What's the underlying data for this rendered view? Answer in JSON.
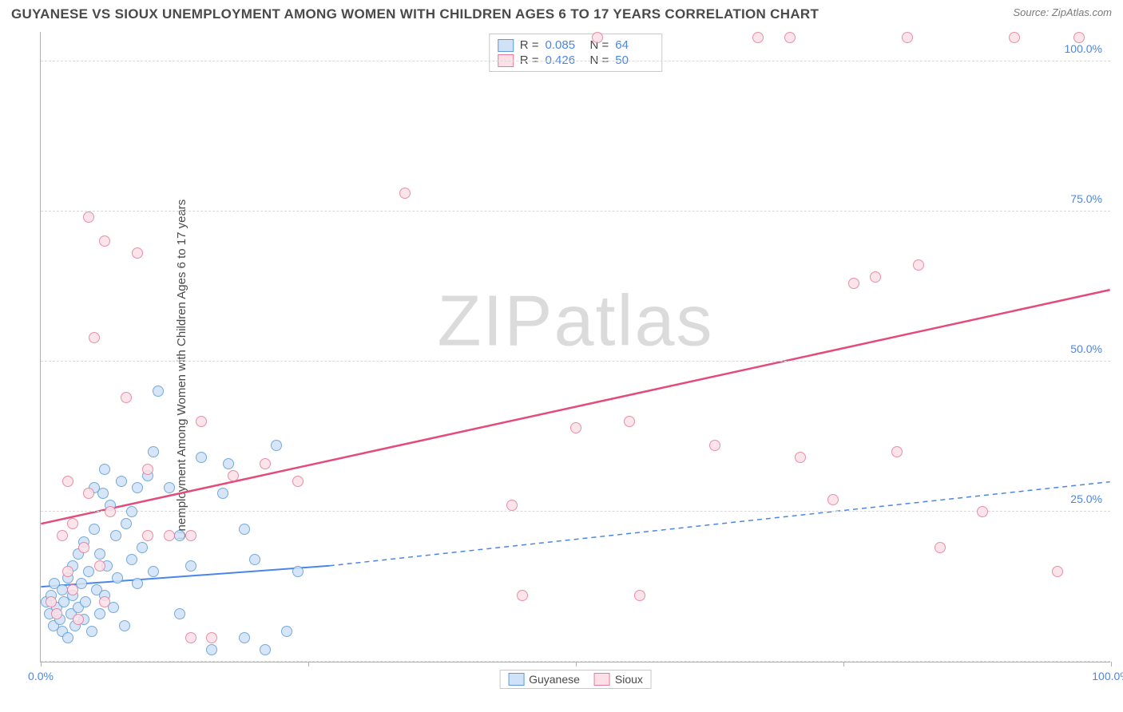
{
  "title": "GUYANESE VS SIOUX UNEMPLOYMENT AMONG WOMEN WITH CHILDREN AGES 6 TO 17 YEARS CORRELATION CHART",
  "source": "Source: ZipAtlas.com",
  "watermark": "ZIPatlas",
  "ylabel": "Unemployment Among Women with Children Ages 6 to 17 years",
  "chart": {
    "type": "scatter",
    "xlim": [
      0,
      100
    ],
    "ylim": [
      0,
      105
    ],
    "xticks": [
      0,
      25,
      50,
      75,
      100
    ],
    "xtick_labels": [
      "0.0%",
      "",
      "",
      "",
      "100.0%"
    ],
    "yticks": [
      0,
      25,
      50,
      75,
      100
    ],
    "ytick_labels": [
      "",
      "25.0%",
      "50.0%",
      "75.0%",
      "100.0%"
    ],
    "grid_color": "#d8d8d8",
    "background_color": "#ffffff",
    "marker_radius": 7,
    "marker_stroke_width": 1.2,
    "series": [
      {
        "name": "Guyanese",
        "fill": "#cfe2f7",
        "stroke": "#5e9cd3",
        "r_value": "0.085",
        "n_value": "64",
        "trend": {
          "x1": 0,
          "y1": 12.5,
          "x2": 27,
          "y2": 16,
          "solid": true,
          "dash_x2": 100,
          "dash_y2": 30,
          "color": "#4a86e8",
          "width": 2
        },
        "points": [
          [
            0.5,
            10
          ],
          [
            0.8,
            8
          ],
          [
            1,
            11
          ],
          [
            1.2,
            6
          ],
          [
            1.3,
            13
          ],
          [
            1.5,
            9
          ],
          [
            1.8,
            7
          ],
          [
            2,
            12
          ],
          [
            2,
            5
          ],
          [
            2.2,
            10
          ],
          [
            2.5,
            14
          ],
          [
            2.5,
            4
          ],
          [
            2.8,
            8
          ],
          [
            3,
            16
          ],
          [
            3,
            11
          ],
          [
            3.2,
            6
          ],
          [
            3.5,
            18
          ],
          [
            3.5,
            9
          ],
          [
            3.8,
            13
          ],
          [
            4,
            7
          ],
          [
            4,
            20
          ],
          [
            4.2,
            10
          ],
          [
            4.5,
            15
          ],
          [
            4.8,
            5
          ],
          [
            5,
            29
          ],
          [
            5,
            22
          ],
          [
            5.2,
            12
          ],
          [
            5.5,
            8
          ],
          [
            5.5,
            18
          ],
          [
            5.8,
            28
          ],
          [
            6,
            11
          ],
          [
            6,
            32
          ],
          [
            6.2,
            16
          ],
          [
            6.5,
            26
          ],
          [
            6.8,
            9
          ],
          [
            7,
            21
          ],
          [
            7.2,
            14
          ],
          [
            7.5,
            30
          ],
          [
            7.8,
            6
          ],
          [
            8,
            23
          ],
          [
            8.5,
            17
          ],
          [
            8.5,
            25
          ],
          [
            9,
            29
          ],
          [
            9,
            13
          ],
          [
            9.5,
            19
          ],
          [
            10,
            31
          ],
          [
            10.5,
            15
          ],
          [
            10.5,
            35
          ],
          [
            11,
            45
          ],
          [
            12,
            29
          ],
          [
            13,
            8
          ],
          [
            13,
            21
          ],
          [
            14,
            16
          ],
          [
            15,
            34
          ],
          [
            16,
            2
          ],
          [
            17,
            28
          ],
          [
            17.5,
            33
          ],
          [
            19,
            4
          ],
          [
            19,
            22
          ],
          [
            20,
            17
          ],
          [
            21,
            2
          ],
          [
            22,
            36
          ],
          [
            23,
            5
          ],
          [
            24,
            15
          ]
        ]
      },
      {
        "name": "Sioux",
        "fill": "#fbe0e7",
        "stroke": "#e77a9a",
        "r_value": "0.426",
        "n_value": "50",
        "trend": {
          "x1": 0,
          "y1": 23,
          "x2": 100,
          "y2": 62,
          "solid": true,
          "color": "#e24b7a",
          "width": 2.5
        },
        "points": [
          [
            1,
            10
          ],
          [
            1.5,
            8
          ],
          [
            2,
            21
          ],
          [
            2.5,
            15
          ],
          [
            2.5,
            30
          ],
          [
            3,
            12
          ],
          [
            3,
            23
          ],
          [
            3.5,
            7
          ],
          [
            4,
            19
          ],
          [
            4.5,
            28
          ],
          [
            4.5,
            74
          ],
          [
            5,
            54
          ],
          [
            5.5,
            16
          ],
          [
            6,
            70
          ],
          [
            6,
            10
          ],
          [
            6.5,
            25
          ],
          [
            8,
            44
          ],
          [
            9,
            68
          ],
          [
            10,
            21
          ],
          [
            10,
            32
          ],
          [
            12,
            21
          ],
          [
            14,
            21
          ],
          [
            14,
            4
          ],
          [
            15,
            40
          ],
          [
            16,
            4
          ],
          [
            18,
            31
          ],
          [
            21,
            33
          ],
          [
            24,
            30
          ],
          [
            34,
            78
          ],
          [
            44,
            26
          ],
          [
            45,
            11
          ],
          [
            50,
            39
          ],
          [
            52,
            104
          ],
          [
            55,
            40
          ],
          [
            56,
            11
          ],
          [
            63,
            36
          ],
          [
            67,
            104
          ],
          [
            70,
            104
          ],
          [
            71,
            34
          ],
          [
            74,
            27
          ],
          [
            76,
            63
          ],
          [
            78,
            64
          ],
          [
            80,
            35
          ],
          [
            81,
            104
          ],
          [
            82,
            66
          ],
          [
            84,
            19
          ],
          [
            88,
            25
          ],
          [
            91,
            104
          ],
          [
            95,
            15
          ],
          [
            97,
            104
          ]
        ]
      }
    ],
    "stats_legend": [
      {
        "swatch_fill": "#cfe2f7",
        "swatch_stroke": "#5e9cd3",
        "r": "0.085",
        "n": "64"
      },
      {
        "swatch_fill": "#fbe0e7",
        "swatch_stroke": "#e77a9a",
        "r": "0.426",
        "n": "50"
      }
    ],
    "bottom_legend": [
      {
        "swatch_fill": "#cfe2f7",
        "swatch_stroke": "#5e9cd3",
        "label": "Guyanese"
      },
      {
        "swatch_fill": "#fbe0e7",
        "swatch_stroke": "#e77a9a",
        "label": "Sioux"
      }
    ]
  }
}
